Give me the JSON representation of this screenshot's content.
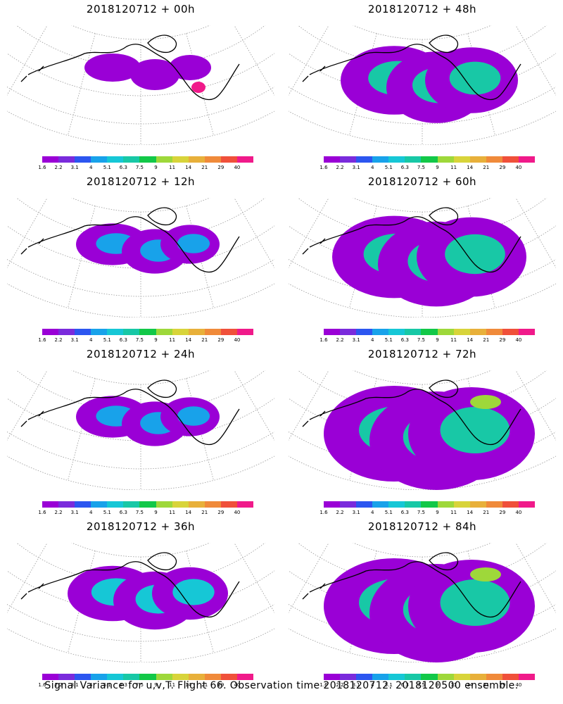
{
  "panels": [
    {
      "title": "2018120712 + 00h",
      "intensity": 0
    },
    {
      "title": "2018120712 + 48h",
      "intensity": 3
    },
    {
      "title": "2018120712 + 12h",
      "intensity": 1
    },
    {
      "title": "2018120712 + 60h",
      "intensity": 4
    },
    {
      "title": "2018120712 + 24h",
      "intensity": 1
    },
    {
      "title": "2018120712 + 72h",
      "intensity": 5
    },
    {
      "title": "2018120712 + 36h",
      "intensity": 2
    },
    {
      "title": "2018120712 + 84h",
      "intensity": 5
    }
  ],
  "colorbar": {
    "colors": [
      "#9a00d6",
      "#7a2bdc",
      "#2c56f0",
      "#18a2ea",
      "#16c7d6",
      "#18c8a6",
      "#12c848",
      "#9ed83a",
      "#d8d43a",
      "#e8b03a",
      "#f08a3a",
      "#f0503a",
      "#f01a8a"
    ],
    "labels": [
      "1.6",
      "2.2",
      "3.1",
      "4",
      "5.1",
      "6.3",
      "7.5",
      "9",
      "11",
      "14",
      "21",
      "29",
      "40"
    ]
  },
  "footer": "Signal Variance for u,v,T. Flight 66. Observation time 2018120712. 2018120500 ensemble."
}
